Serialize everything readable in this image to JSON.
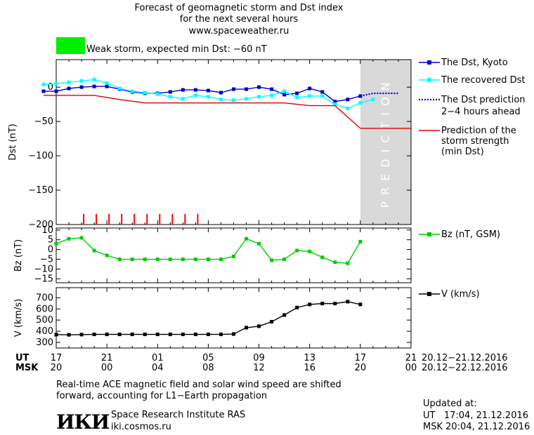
{
  "header": {
    "title_line1": "Forecast of geomagnetic storm and Dst index",
    "title_line2": "for the next several hours",
    "site": "www.spaceweather.ru",
    "storm_status": "Weak storm, expected min Dst: −60 nT",
    "storm_status_color": "#00ee00"
  },
  "time_axis": {
    "ut_label": "UT",
    "msk_label": "MSK",
    "ut_ticks": [
      "17",
      "21",
      "01",
      "05",
      "09",
      "13",
      "17",
      "21"
    ],
    "msk_ticks": [
      "20",
      "00",
      "04",
      "08",
      "12",
      "16",
      "20",
      "00"
    ],
    "ut_range": "20.12−21.12.2016",
    "msk_range": "20.12−22.12.2016"
  },
  "footer": {
    "note_line1": "Real-time ACE magnetic field and solar wind speed are shifted",
    "note_line2": "forward, accounting for L1−Earth propagation",
    "institute_logo": "ИКИ",
    "institute_name": "Space Research Institute RAS",
    "institute_url": "iki.cosmos.ru",
    "updated_label": "Updated at:",
    "updated_ut": "UT   17:04, 21.12.2016",
    "updated_msk": "MSK 20:04, 21.12.2016"
  },
  "chart_data": [
    {
      "type": "line",
      "ylabel": "Dst (nT)",
      "ylim": [
        -200,
        40
      ],
      "yticks": [
        0,
        -50,
        -100,
        -150,
        -200
      ],
      "prediction_band_label": "PREDICTION",
      "prediction_band_color": "#d9d9d9",
      "storm_marker_color": "#ff0000",
      "storm_marker_hours": [
        2.0,
        3.0,
        4.0,
        5.0,
        6.0,
        7.0,
        8.0,
        9.0,
        10.0,
        11.0
      ],
      "series": [
        {
          "name": "The Dst, Kyoto",
          "color": "#0000cc",
          "style": "line-square",
          "x": [
            -1,
            0,
            1,
            2,
            3,
            4,
            5,
            6,
            7,
            8,
            9,
            10,
            11,
            12,
            13,
            14,
            15,
            16,
            17,
            18,
            19,
            20,
            21,
            22,
            23,
            24
          ],
          "y": [
            -6,
            -6,
            -2,
            0,
            1,
            1,
            -3,
            -7,
            -9,
            -9,
            -7,
            -4,
            -4,
            -5,
            -8,
            -3,
            -3,
            0,
            -3,
            -11,
            -9,
            -2,
            -7,
            -21,
            -18,
            -13
          ]
        },
        {
          "name": "The recovered Dst",
          "color": "#00ffff",
          "style": "line-square",
          "x": [
            -1,
            0,
            1,
            2,
            3,
            4,
            5,
            6,
            7,
            8,
            9,
            10,
            11,
            12,
            13,
            14,
            15,
            16,
            17,
            18,
            19,
            20,
            21,
            22,
            23,
            24,
            25
          ],
          "y": [
            4,
            5,
            7,
            9,
            11,
            6,
            -2,
            -6,
            -8,
            -10,
            -14,
            -17,
            -12,
            -14,
            -18,
            -19,
            -17,
            -14,
            -12,
            -6,
            -15,
            -13,
            -13,
            -25,
            -31,
            -23,
            -18
          ]
        },
        {
          "name": "The Dst prediction 2−4 hours ahead",
          "color": "#0000cc",
          "style": "dotted",
          "x": [
            24,
            25,
            26,
            27
          ],
          "y": [
            -13,
            -9,
            -9,
            -9
          ]
        },
        {
          "name": "Prediction of the storm strength (min Dst)",
          "color": "#dd0000",
          "style": "line",
          "x": [
            -1,
            3,
            5,
            7,
            16,
            18,
            20,
            22,
            24,
            28
          ],
          "y": [
            -12,
            -12,
            -18,
            -23,
            -23,
            -23,
            -27,
            -27,
            -60,
            -60
          ]
        }
      ],
      "legend": [
        "The Dst, Kyoto",
        "The recovered Dst",
        "The Dst prediction",
        "2−4 hours ahead",
        "Prediction of the",
        "storm strength",
        "(min Dst)"
      ]
    },
    {
      "type": "line",
      "ylabel": "Bz (nT)",
      "ylim": [
        -17,
        11
      ],
      "yticks": [
        10,
        5,
        0,
        -5,
        -10,
        -15
      ],
      "series": [
        {
          "name": "Bz (nT, GSM)",
          "color": "#00cc00",
          "style": "line-square",
          "x": [
            0,
            1,
            2,
            3,
            4,
            5,
            6,
            7,
            8,
            9,
            10,
            11,
            12,
            13,
            14,
            15,
            16,
            17,
            18,
            19,
            20,
            21,
            22,
            23,
            24,
            25
          ],
          "y": [
            3,
            5.5,
            6,
            -0.5,
            -3,
            -5,
            -5,
            -5,
            -5,
            -5,
            -5,
            -5,
            -5,
            -5,
            -3.5,
            5.5,
            3,
            -5.5,
            -5,
            -0.5,
            -1,
            -4,
            -6.5,
            -7,
            4,
            null
          ]
        }
      ],
      "legend": [
        "Bz (nT, GSM)"
      ]
    },
    {
      "type": "line",
      "ylabel": "V (km/s)",
      "ylim": [
        250,
        790
      ],
      "yticks": [
        700,
        600,
        500,
        400,
        300
      ],
      "series": [
        {
          "name": "V (km/s)",
          "color": "#000000",
          "style": "line-square",
          "x": [
            0,
            1,
            2,
            3,
            4,
            5,
            6,
            7,
            8,
            9,
            10,
            11,
            12,
            13,
            14,
            15,
            16,
            17,
            18,
            19,
            20,
            21,
            22,
            23,
            24
          ],
          "y": [
            370,
            368,
            370,
            372,
            372,
            372,
            372,
            372,
            372,
            372,
            372,
            372,
            372,
            372,
            375,
            432,
            445,
            485,
            545,
            612,
            640,
            648,
            648,
            665,
            640
          ]
        }
      ],
      "legend": [
        "V (km/s)"
      ]
    }
  ]
}
